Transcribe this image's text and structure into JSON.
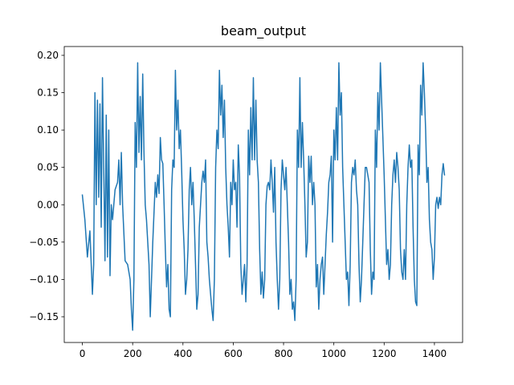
{
  "chart_data": {
    "type": "line",
    "title": "beam_output",
    "x": [
      0,
      10,
      20,
      30,
      40,
      45,
      50,
      55,
      60,
      65,
      70,
      75,
      80,
      85,
      90,
      95,
      100,
      105,
      110,
      115,
      120,
      130,
      140,
      145,
      150,
      155,
      160,
      170,
      180,
      190,
      195,
      200,
      205,
      210,
      215,
      220,
      225,
      230,
      235,
      240,
      245,
      250,
      255,
      260,
      265,
      270,
      275,
      280,
      285,
      290,
      295,
      300,
      305,
      310,
      315,
      320,
      325,
      330,
      335,
      340,
      345,
      350,
      355,
      360,
      365,
      370,
      375,
      380,
      385,
      390,
      395,
      400,
      405,
      410,
      415,
      420,
      425,
      430,
      435,
      440,
      445,
      450,
      455,
      460,
      465,
      470,
      475,
      480,
      485,
      490,
      495,
      500,
      505,
      510,
      515,
      520,
      525,
      530,
      535,
      540,
      545,
      550,
      555,
      560,
      565,
      570,
      575,
      580,
      585,
      590,
      595,
      600,
      605,
      610,
      615,
      620,
      625,
      630,
      635,
      640,
      645,
      650,
      655,
      660,
      665,
      670,
      675,
      680,
      685,
      690,
      695,
      700,
      705,
      710,
      715,
      720,
      725,
      730,
      735,
      740,
      745,
      750,
      755,
      760,
      765,
      770,
      775,
      780,
      785,
      790,
      795,
      800,
      805,
      810,
      815,
      820,
      825,
      830,
      835,
      840,
      845,
      850,
      855,
      860,
      865,
      870,
      875,
      880,
      885,
      890,
      895,
      900,
      905,
      910,
      915,
      920,
      925,
      930,
      935,
      940,
      945,
      950,
      955,
      960,
      965,
      970,
      975,
      980,
      985,
      990,
      995,
      1000,
      1005,
      1010,
      1015,
      1020,
      1025,
      1030,
      1035,
      1040,
      1045,
      1050,
      1055,
      1060,
      1065,
      1070,
      1075,
      1080,
      1085,
      1090,
      1095,
      1100,
      1105,
      1110,
      1115,
      1120,
      1125,
      1130,
      1135,
      1140,
      1145,
      1150,
      1155,
      1160,
      1165,
      1170,
      1175,
      1180,
      1185,
      1190,
      1195,
      1200,
      1205,
      1210,
      1215,
      1220,
      1225,
      1230,
      1235,
      1240,
      1245,
      1250,
      1255,
      1260,
      1265,
      1270,
      1275,
      1280,
      1285,
      1290,
      1295,
      1300,
      1305,
      1310,
      1315,
      1320,
      1325,
      1330,
      1335,
      1340,
      1345,
      1350,
      1355,
      1360,
      1365,
      1370,
      1375,
      1380,
      1385,
      1390,
      1395,
      1400,
      1405,
      1410,
      1415,
      1420,
      1425,
      1430,
      1435,
      1440
    ],
    "series": [
      {
        "color": "#1f77b4",
        "values": [
          0.013,
          -0.02,
          -0.07,
          -0.035,
          -0.12,
          -0.08,
          0.15,
          0,
          0.14,
          0.01,
          0.135,
          -0.03,
          0.17,
          0.05,
          -0.075,
          0.12,
          -0.07,
          0.1,
          -0.095,
          0,
          -0.02,
          0.02,
          0.03,
          0.06,
          0,
          0.07,
          0,
          -0.075,
          -0.08,
          -0.1,
          -0.14,
          -0.168,
          -0.1,
          0.11,
          0.05,
          0.19,
          0.07,
          0.145,
          0.06,
          0.175,
          0.07,
          0,
          -0.02,
          -0.05,
          -0.08,
          -0.15,
          -0.1,
          -0.05,
          -0.01,
          0.03,
          0.01,
          0.04,
          0.015,
          0.09,
          0.06,
          0.055,
          0,
          -0.06,
          -0.11,
          -0.08,
          -0.14,
          -0.15,
          0.02,
          0.06,
          0.05,
          0.18,
          0.1,
          0.14,
          0.075,
          0.1,
          0.045,
          -0.02,
          -0.06,
          -0.12,
          -0.1,
          -0.06,
          0.02,
          0.05,
          0,
          0.03,
          -0.02,
          -0.08,
          -0.14,
          -0.12,
          -0.03,
          0,
          0.03,
          0.045,
          0.03,
          0.06,
          -0.05,
          -0.07,
          -0.1,
          -0.12,
          -0.14,
          -0.155,
          -0.1,
          0.05,
          0.1,
          0.075,
          0.18,
          0.12,
          0.16,
          0.09,
          0.14,
          0.05,
          0,
          -0.03,
          -0.07,
          0.03,
          0,
          0.06,
          0.02,
          0.03,
          -0.03,
          0.08,
          0.04,
          -0.08,
          -0.12,
          -0.1,
          -0.08,
          -0.13,
          -0.08,
          0.1,
          0.04,
          0.13,
          0.06,
          0.17,
          0.06,
          0.14,
          0.06,
          0.03,
          -0.06,
          -0.12,
          -0.09,
          -0.125,
          -0.1,
          0,
          0.025,
          0.03,
          0.02,
          0.06,
          0.03,
          -0.01,
          0.05,
          -0.05,
          -0.1,
          -0.14,
          -0.1,
          0.02,
          0.06,
          0.04,
          0.02,
          0.05,
          0,
          -0.05,
          -0.12,
          -0.1,
          -0.14,
          -0.13,
          -0.155,
          -0.1,
          0.1,
          0.05,
          0.17,
          0.05,
          0.11,
          0.06,
          0,
          -0.07,
          -0.05,
          0.065,
          0.03,
          0.065,
          0,
          0.03,
          0,
          -0.11,
          -0.08,
          -0.14,
          -0.1,
          -0.08,
          -0.07,
          -0.12,
          -0.08,
          -0.04,
          -0.01,
          0.03,
          0.04,
          0.065,
          -0.05,
          0.1,
          0.06,
          0.13,
          0.06,
          0.19,
          0.12,
          0.15,
          0.05,
          0,
          -0.05,
          -0.1,
          -0.09,
          -0.135,
          -0.08,
          0.03,
          0.05,
          0.04,
          0.06,
          0.02,
          0,
          -0.08,
          -0.13,
          -0.1,
          -0.05,
          0,
          0.05,
          0.05,
          0.04,
          0.03,
          -0.06,
          -0.12,
          -0.09,
          -0.1,
          0.1,
          0.05,
          0.15,
          0.1,
          0.19,
          0.14,
          0.09,
          0.04,
          -0.02,
          -0.08,
          -0.06,
          -0.1,
          -0.08,
          0,
          0.04,
          0.06,
          0.03,
          0.07,
          0.05,
          0.02,
          -0.06,
          -0.09,
          -0.1,
          -0.06,
          -0.1,
          0,
          0.05,
          0.08,
          0.05,
          0.06,
          -0.03,
          -0.1,
          -0.13,
          -0.135,
          0.08,
          0.04,
          0.16,
          0.12,
          0.19,
          0.15,
          0.1,
          0.03,
          0.05,
          -0.02,
          -0.05,
          -0.06,
          -0.1,
          -0.07,
          0,
          0.01,
          -0.005,
          0.01,
          0,
          0.04,
          0.055,
          0.04
        ]
      }
    ],
    "xlim": [
      -72,
      1512
    ],
    "ylim": [
      -0.1844,
      0.2118
    ],
    "xticks": [
      0,
      200,
      400,
      600,
      800,
      1000,
      1200,
      1400
    ],
    "yticks": [
      {
        "value": -0.15,
        "label": "−0.15"
      },
      {
        "value": -0.1,
        "label": "−0.10"
      },
      {
        "value": -0.05,
        "label": "−0.05"
      },
      {
        "value": 0,
        "label": "0.00"
      },
      0.05,
      {
        "value": 0.1,
        "label": "0.10"
      },
      0.15,
      {
        "value": 0.2,
        "label": "0.20"
      }
    ],
    "grid": false
  }
}
